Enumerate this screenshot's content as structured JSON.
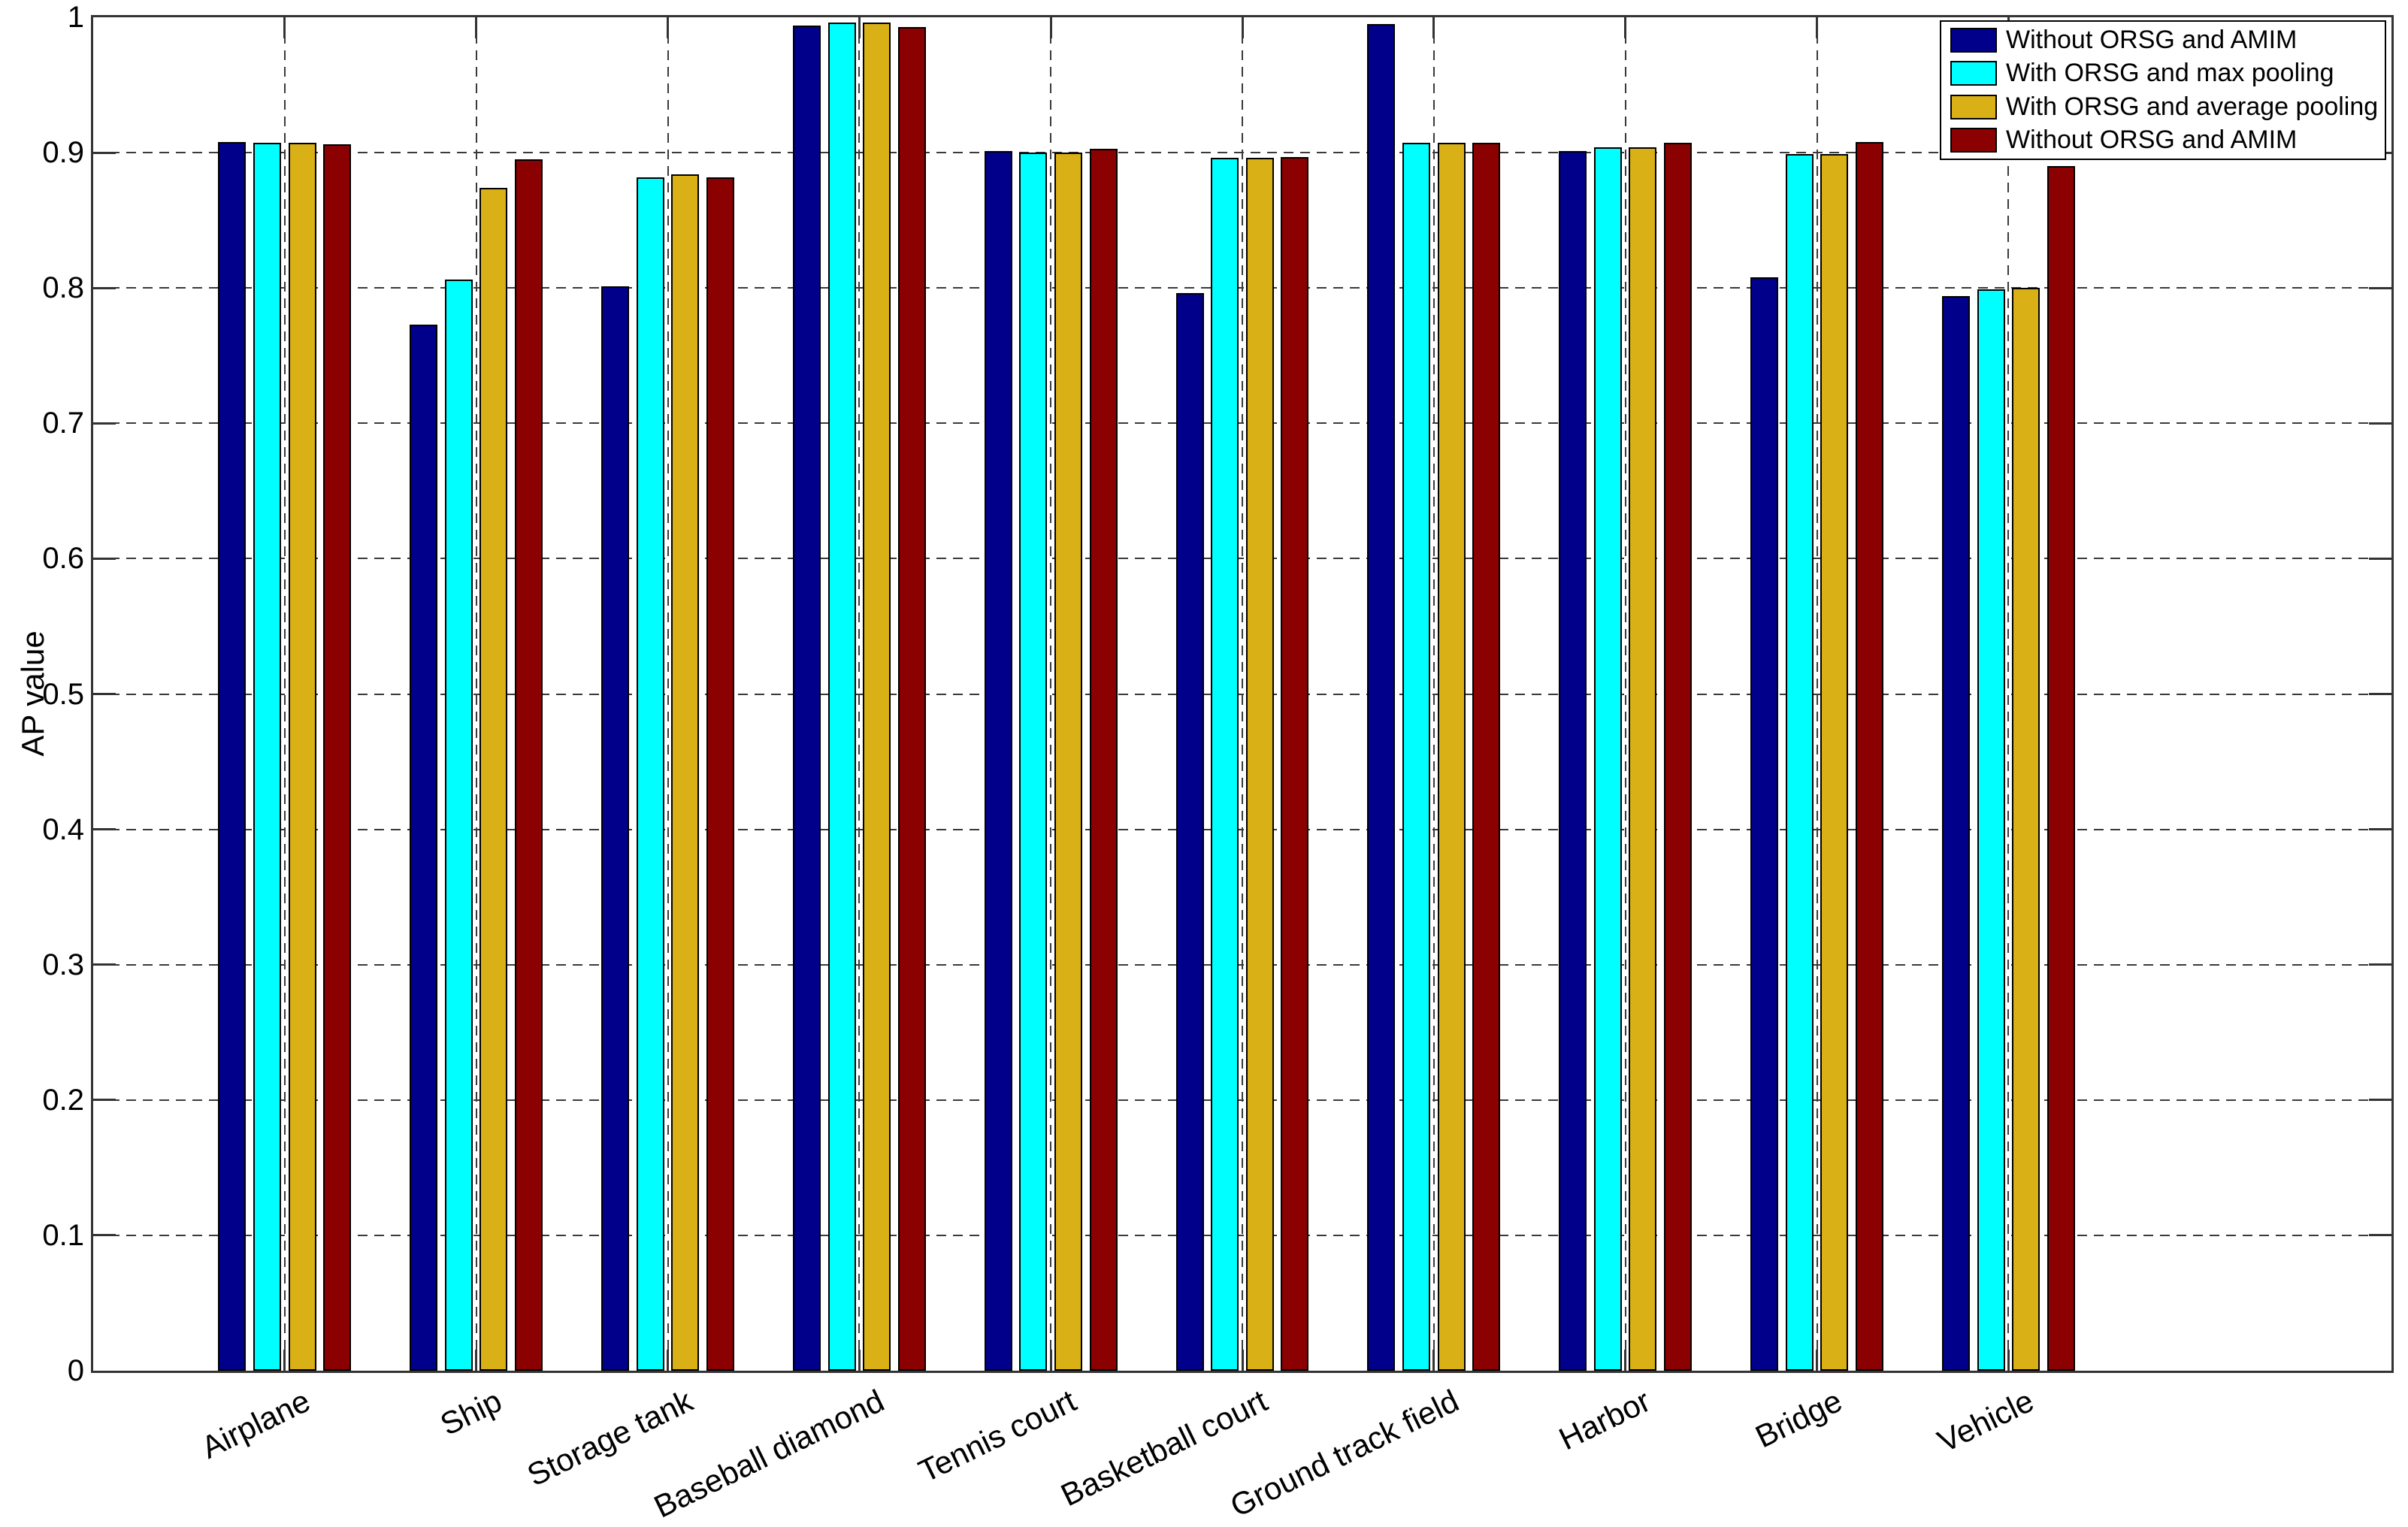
{
  "chart_data": {
    "type": "bar",
    "title": "",
    "xlabel": "",
    "ylabel": "AP value",
    "ylim": [
      0,
      1
    ],
    "ytick_labels": [
      "0",
      "0.1",
      "0.2",
      "0.3",
      "0.4",
      "0.5",
      "0.6",
      "0.7",
      "0.8",
      "0.9",
      "1"
    ],
    "grid": "dashed horizontal at each y tick and dashed vertical at each category",
    "legend_position": "upper-right",
    "categories": [
      "Airplane",
      "Ship",
      "Storage tank",
      "Baseball diamond",
      "Tennis court",
      "Basketball court",
      "Ground track field",
      "Harbor",
      "Bridge",
      "Vehicle"
    ],
    "series": [
      {
        "name": "Without ORSG and AMIM",
        "color": "#00008B",
        "values": [
          0.908,
          0.773,
          0.801,
          0.994,
          0.901,
          0.796,
          0.995,
          0.901,
          0.808,
          0.794
        ]
      },
      {
        "name": "With ORSG and max pooling",
        "color": "#00FFFF",
        "values": [
          0.907,
          0.806,
          0.882,
          0.996,
          0.9,
          0.896,
          0.907,
          0.904,
          0.899,
          0.799
        ]
      },
      {
        "name": "With ORSG and average pooling",
        "color": "#D9B116",
        "values": [
          0.907,
          0.874,
          0.884,
          0.996,
          0.9,
          0.896,
          0.907,
          0.904,
          0.899,
          0.8
        ]
      },
      {
        "name": "Without ORSG and AMIM",
        "color": "#8B0000",
        "values": [
          0.906,
          0.895,
          0.882,
          0.993,
          0.903,
          0.897,
          0.907,
          0.907,
          0.908,
          0.89
        ]
      }
    ],
    "style": {
      "axis_color": "#333333",
      "grid_color": "#3a3a3a",
      "bar_edge_color": "#000000",
      "background": "#ffffff"
    }
  }
}
